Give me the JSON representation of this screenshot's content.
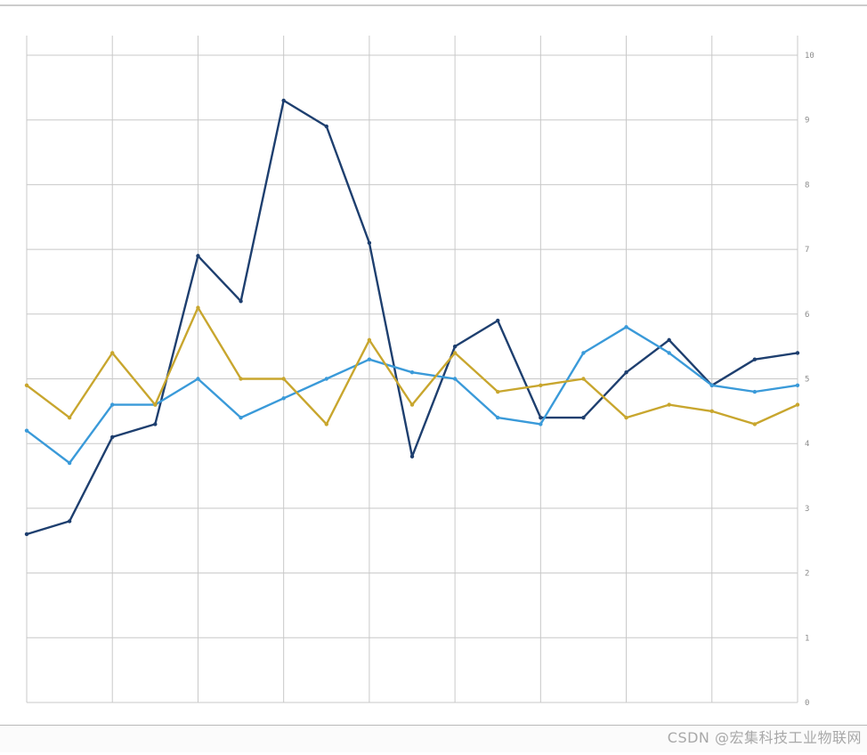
{
  "chart_data": {
    "type": "line",
    "title": "",
    "xlabel": "",
    "ylabel": "",
    "x": [
      1,
      2,
      3,
      4,
      5,
      6,
      7,
      8,
      9,
      10,
      11,
      12,
      13,
      14,
      15,
      16,
      17,
      18,
      19
    ],
    "ylim": [
      0,
      10
    ],
    "yticks": [
      0,
      1,
      2,
      3,
      4,
      5,
      6,
      7,
      8,
      9,
      10
    ],
    "grid": true,
    "legend": "none",
    "series": [
      {
        "color": "#1e3f6f",
        "values": [
          2.6,
          2.8,
          4.1,
          4.3,
          6.9,
          6.2,
          9.3,
          8.9,
          7.1,
          3.8,
          5.5,
          5.9,
          4.4,
          4.4,
          5.1,
          5.6,
          4.9,
          5.3,
          5.4
        ]
      },
      {
        "color": "#3a9ad9",
        "values": [
          4.2,
          3.7,
          4.6,
          4.6,
          5.0,
          4.4,
          4.7,
          5.0,
          5.3,
          5.1,
          5.0,
          4.4,
          4.3,
          5.4,
          5.8,
          5.4,
          4.9,
          4.8,
          4.9
        ]
      },
      {
        "color": "#c8a62e",
        "values": [
          4.9,
          4.4,
          5.4,
          4.6,
          6.1,
          5.0,
          5.0,
          4.3,
          5.6,
          4.6,
          5.4,
          4.8,
          4.9,
          5.0,
          4.4,
          4.6,
          4.5,
          4.3,
          4.6
        ]
      }
    ]
  },
  "watermark": "CSDN @宏集科技工业物联网"
}
